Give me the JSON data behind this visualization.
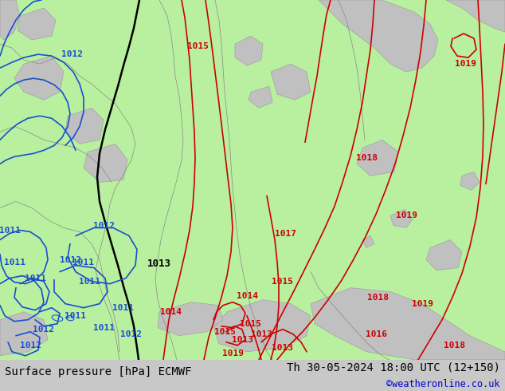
{
  "title_left": "Surface pressure [hPa] ECMWF",
  "title_right": "Th 30-05-2024 18:00 UTC (12+150)",
  "copyright": "©weatheronline.co.uk",
  "bg_color": "#c8c8c8",
  "land_green": "#b8f0a0",
  "land_gray": "#c0c0c0",
  "sea_color": "#e8e8e8",
  "isobar_red_color": "#cc0000",
  "isobar_blue_color": "#1a4fcc",
  "isobar_black_color": "#000000",
  "text_color_bottom": "#000000",
  "copyright_color": "#0000cc",
  "bottom_bar_color": "#ffffff",
  "label_fontsize": 8,
  "title_fontsize": 10,
  "fig_width": 6.34,
  "fig_height": 4.9,
  "dpi": 100
}
